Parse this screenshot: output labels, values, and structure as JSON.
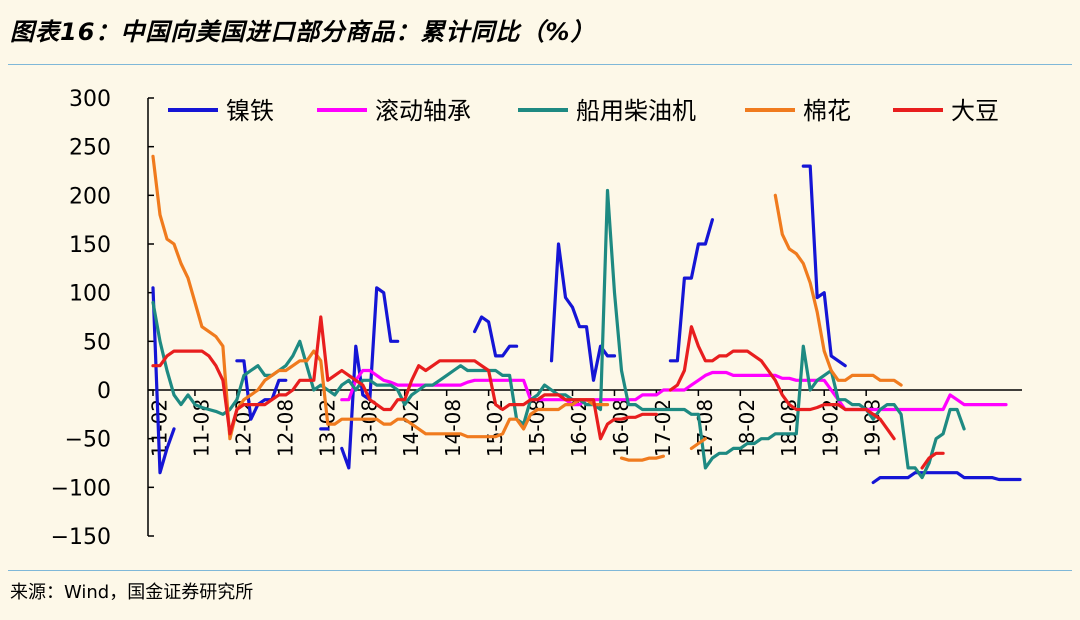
{
  "figure_title": "图表16：中国向美国进口部分商品：累计同比（%）",
  "source_text": "来源：Wind，国金证券研究所",
  "chart_data": {
    "type": "line",
    "ylim": [
      -150,
      300
    ],
    "yticks": [
      300,
      250,
      200,
      150,
      100,
      50,
      0,
      -50,
      -100,
      -150
    ],
    "xtick_labels": [
      "11-02",
      "11-08",
      "12-02",
      "12-08",
      "13-02",
      "13-08",
      "14-02",
      "14-08",
      "15-02",
      "15-08",
      "16-02",
      "16-08",
      "17-02",
      "17-08",
      "18-02",
      "18-08",
      "19-02",
      "19-08"
    ],
    "x_start": "2011-02",
    "legend_position": "top",
    "series": [
      {
        "name": "镍铁",
        "color": "#1515d5",
        "values": [
          105,
          -85,
          -60,
          -40,
          null,
          null,
          null,
          null,
          null,
          null,
          null,
          null,
          30,
          30,
          -30,
          -15,
          -10,
          -10,
          10,
          10,
          null,
          null,
          null,
          null,
          -40,
          -40,
          null,
          -60,
          -80,
          45,
          -5,
          -10,
          105,
          100,
          50,
          50,
          null,
          null,
          null,
          null,
          null,
          null,
          null,
          null,
          null,
          null,
          60,
          75,
          70,
          35,
          35,
          45,
          45,
          null,
          null,
          null,
          null,
          30,
          150,
          95,
          85,
          65,
          65,
          10,
          45,
          35,
          35,
          null,
          null,
          null,
          null,
          null,
          null,
          null,
          30,
          30,
          115,
          115,
          150,
          150,
          175,
          null,
          null,
          null,
          null,
          null,
          null,
          null,
          null,
          null,
          null,
          null,
          null,
          230,
          230,
          95,
          100,
          35,
          30,
          25,
          null,
          null,
          null,
          -95,
          -90,
          -90,
          -90,
          -90,
          -90,
          -85,
          -85,
          -85,
          -85,
          -85,
          -85,
          -85,
          -90,
          -90,
          -90,
          -90,
          -90,
          -92,
          -92,
          -92,
          -92
        ]
      },
      {
        "name": "滚动轴承",
        "color": "#ff00ff",
        "values": [
          null,
          null,
          null,
          null,
          null,
          null,
          null,
          null,
          null,
          null,
          null,
          null,
          null,
          null,
          null,
          null,
          null,
          null,
          null,
          null,
          null,
          null,
          null,
          null,
          null,
          null,
          null,
          -10,
          -10,
          10,
          20,
          20,
          15,
          10,
          8,
          5,
          5,
          5,
          5,
          5,
          5,
          5,
          5,
          5,
          5,
          8,
          10,
          10,
          10,
          10,
          10,
          10,
          10,
          10,
          -10,
          -10,
          -10,
          -10,
          -10,
          -10,
          -15,
          -15,
          -10,
          -10,
          -10,
          -10,
          -10,
          -10,
          -10,
          -10,
          -5,
          -5,
          -5,
          0,
          0,
          0,
          0,
          5,
          10,
          15,
          18,
          18,
          18,
          15,
          15,
          15,
          15,
          15,
          15,
          15,
          12,
          12,
          10,
          10,
          10,
          10,
          10,
          0,
          -10,
          -20,
          -20,
          -20,
          -20,
          -20,
          -20,
          -20,
          -20,
          -20,
          -20,
          -20,
          -20,
          -20,
          -20,
          -20,
          -5,
          -10,
          -15,
          -15,
          -15,
          -15,
          -15,
          -15,
          -15
        ]
      },
      {
        "name": "船用柴油机",
        "color": "#1e8a82",
        "values": [
          90,
          50,
          20,
          -5,
          -15,
          -5,
          -15,
          -18,
          -20,
          -22,
          -25,
          -20,
          -10,
          15,
          20,
          25,
          15,
          15,
          20,
          25,
          35,
          50,
          25,
          0,
          5,
          0,
          -5,
          5,
          10,
          0,
          10,
          10,
          5,
          5,
          5,
          0,
          -15,
          -5,
          0,
          5,
          5,
          10,
          15,
          20,
          25,
          20,
          20,
          20,
          20,
          20,
          15,
          15,
          -30,
          -35,
          -10,
          -5,
          5,
          0,
          -5,
          -5,
          -10,
          -10,
          -15,
          -15,
          -20,
          205,
          100,
          20,
          -15,
          -15,
          -20,
          -20,
          -20,
          -20,
          -20,
          -20,
          -20,
          -25,
          -25,
          -80,
          -70,
          -65,
          -65,
          -60,
          -60,
          -55,
          -55,
          -50,
          -50,
          -45,
          -45,
          -45,
          -45,
          45,
          0,
          10,
          15,
          20,
          -10,
          -10,
          -15,
          -15,
          -20,
          -30,
          -20,
          -15,
          -15,
          -25,
          -80,
          -80,
          -90,
          -75,
          -50,
          -45,
          -20,
          -20,
          -40
        ]
      },
      {
        "name": "棉花",
        "color": "#f07b1e",
        "values": [
          240,
          180,
          155,
          150,
          130,
          115,
          90,
          65,
          60,
          55,
          45,
          -50,
          -20,
          -10,
          -5,
          0,
          10,
          15,
          20,
          20,
          25,
          30,
          30,
          40,
          30,
          -35,
          -35,
          -30,
          -30,
          -30,
          -30,
          -30,
          -30,
          -35,
          -35,
          -30,
          -30,
          -35,
          -40,
          -45,
          -45,
          -45,
          -45,
          -45,
          -45,
          -48,
          -48,
          -48,
          -48,
          -48,
          -45,
          -30,
          -30,
          -40,
          -25,
          -20,
          -20,
          -20,
          -20,
          -15,
          -15,
          -10,
          -10,
          -15,
          -15,
          -15,
          null,
          -70,
          -72,
          -72,
          -72,
          -70,
          -70,
          -68,
          null,
          null,
          null,
          -60,
          -55,
          -50,
          null,
          null,
          null,
          null,
          null,
          null,
          null,
          null,
          null,
          200,
          160,
          145,
          140,
          130,
          110,
          80,
          40,
          20,
          10,
          10,
          15,
          15,
          15,
          15,
          10,
          10,
          10,
          5,
          null,
          null,
          null,
          null,
          null,
          null,
          null,
          null,
          null,
          null,
          null,
          null,
          null
        ]
      },
      {
        "name": "大豆",
        "color": "#e81e1e",
        "values": [
          25,
          25,
          35,
          40,
          40,
          40,
          40,
          40,
          35,
          25,
          10,
          -45,
          -20,
          -15,
          -15,
          -15,
          -15,
          -10,
          -5,
          -5,
          0,
          10,
          10,
          10,
          75,
          10,
          15,
          20,
          15,
          10,
          5,
          -10,
          -15,
          -20,
          -20,
          -10,
          -10,
          10,
          25,
          20,
          25,
          30,
          30,
          30,
          30,
          30,
          30,
          25,
          20,
          -15,
          -20,
          -15,
          -15,
          -15,
          -10,
          -10,
          -5,
          -5,
          -5,
          -10,
          -10,
          -10,
          -10,
          -10,
          -50,
          -35,
          -30,
          -30,
          -28,
          -28,
          -25,
          -25,
          -25,
          null,
          0,
          5,
          20,
          65,
          45,
          30,
          30,
          35,
          35,
          40,
          40,
          40,
          35,
          30,
          20,
          10,
          -5,
          -15,
          -20,
          -20,
          -20,
          -18,
          -15,
          -15,
          -15,
          -20,
          -20,
          -20,
          -20,
          -25,
          -30,
          -40,
          -50,
          null,
          null,
          null,
          -80,
          -70,
          -65,
          -65,
          null,
          null,
          null,
          null,
          null,
          null,
          null
        ]
      }
    ]
  }
}
